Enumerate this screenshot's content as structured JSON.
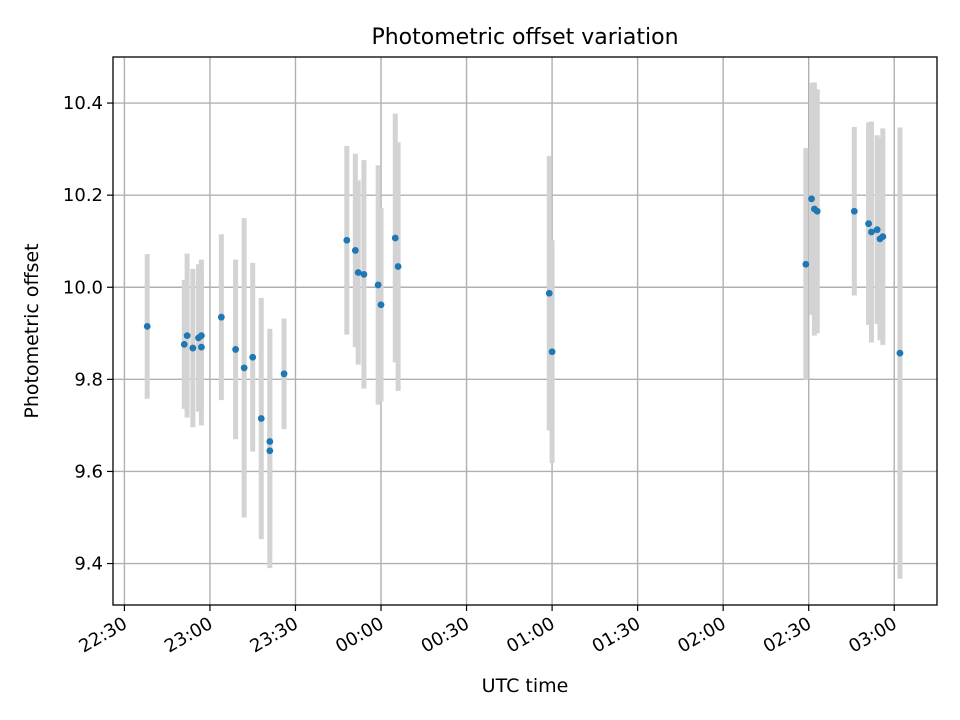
{
  "chart_data": {
    "type": "scatter",
    "title": "Photometric offset variation",
    "xlabel": "UTC time",
    "ylabel": "Photometric offset",
    "x_ticks": [
      "22:30",
      "23:00",
      "23:30",
      "00:00",
      "00:30",
      "01:00",
      "01:30",
      "02:00",
      "02:30",
      "03:00"
    ],
    "y_ticks": [
      "9.4",
      "9.6",
      "9.8",
      "10.0",
      "10.2",
      "10.4"
    ],
    "xlim": [
      "22:26",
      "03:15"
    ],
    "ylim": [
      9.31,
      10.5
    ],
    "grid": true,
    "colors": {
      "point": "#1f77b4",
      "errorbar": "#d3d3d3",
      "grid": "#b0b0b0"
    },
    "points": [
      {
        "time": "22:38",
        "y": 9.915,
        "err": 0.157
      },
      {
        "time": "22:51",
        "y": 9.876,
        "err": 0.14
      },
      {
        "time": "22:52",
        "y": 9.895,
        "err": 0.178
      },
      {
        "time": "22:54",
        "y": 9.868,
        "err": 0.172
      },
      {
        "time": "22:56",
        "y": 9.89,
        "err": 0.16
      },
      {
        "time": "22:57",
        "y": 9.895,
        "err": 0.165
      },
      {
        "time": "22:57",
        "y": 9.87,
        "err": 0.17
      },
      {
        "time": "23:04",
        "y": 9.935,
        "err": 0.18
      },
      {
        "time": "23:09",
        "y": 9.865,
        "err": 0.195
      },
      {
        "time": "23:12",
        "y": 9.825,
        "err": 0.325
      },
      {
        "time": "23:15",
        "y": 9.848,
        "err": 0.205
      },
      {
        "time": "23:18",
        "y": 9.715,
        "err": 0.262
      },
      {
        "time": "23:21",
        "y": 9.665,
        "err": 0.245
      },
      {
        "time": "23:21",
        "y": 9.645,
        "err": 0.255
      },
      {
        "time": "23:26",
        "y": 9.812,
        "err": 0.12
      },
      {
        "time": "23:48",
        "y": 10.102,
        "err": 0.205
      },
      {
        "time": "23:51",
        "y": 10.08,
        "err": 0.21
      },
      {
        "time": "23:52",
        "y": 10.032,
        "err": 0.2
      },
      {
        "time": "23:54",
        "y": 10.028,
        "err": 0.248
      },
      {
        "time": "23:59",
        "y": 10.005,
        "err": 0.26
      },
      {
        "time": "00:00",
        "y": 9.962,
        "err": 0.21
      },
      {
        "time": "00:05",
        "y": 10.107,
        "err": 0.27
      },
      {
        "time": "00:06",
        "y": 10.045,
        "err": 0.27
      },
      {
        "time": "00:59",
        "y": 9.987,
        "err": 0.298
      },
      {
        "time": "01:00",
        "y": 9.86,
        "err": 0.242
      },
      {
        "time": "02:29",
        "y": 10.05,
        "err": 0.252
      },
      {
        "time": "02:31",
        "y": 10.192,
        "err": 0.252
      },
      {
        "time": "02:32",
        "y": 10.17,
        "err": 0.275
      },
      {
        "time": "02:33",
        "y": 10.165,
        "err": 0.265
      },
      {
        "time": "02:46",
        "y": 10.165,
        "err": 0.183
      },
      {
        "time": "02:51",
        "y": 10.138,
        "err": 0.22
      },
      {
        "time": "02:52",
        "y": 10.12,
        "err": 0.24
      },
      {
        "time": "02:54",
        "y": 10.125,
        "err": 0.205
      },
      {
        "time": "02:55",
        "y": 10.105,
        "err": 0.22
      },
      {
        "time": "02:56",
        "y": 10.11,
        "err": 0.235
      },
      {
        "time": "03:02",
        "y": 9.857,
        "err": 0.49
      }
    ]
  }
}
